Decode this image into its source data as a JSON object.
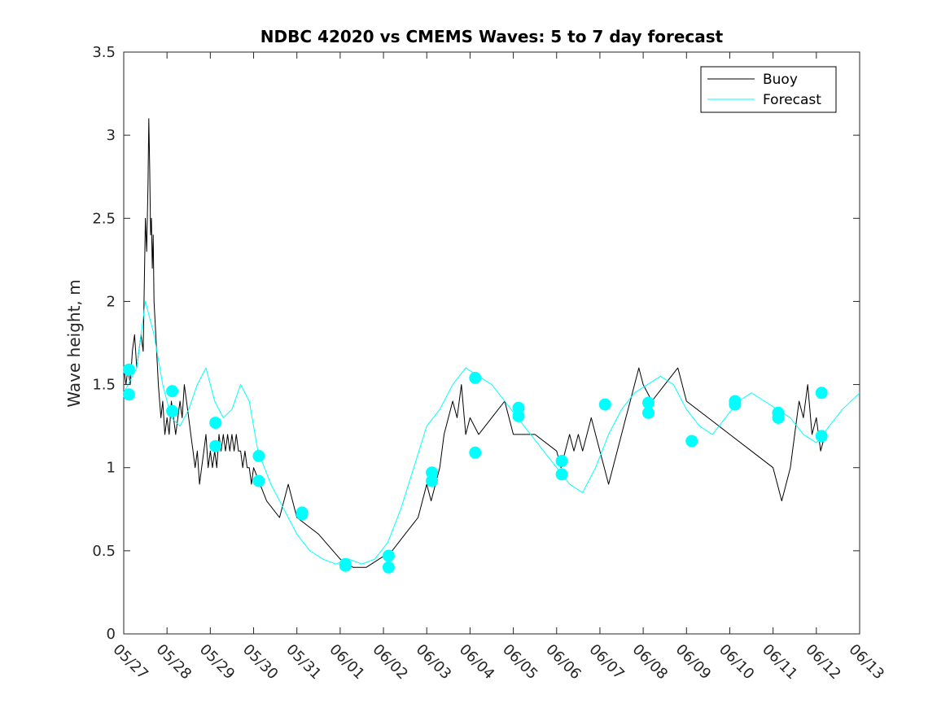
{
  "chart_data": {
    "type": "line",
    "title": "NDBC 42020 vs CMEMS Waves: 5 to 7 day forecast",
    "xlabel": "",
    "ylabel": "Wave height, m",
    "xlim": [
      0,
      17
    ],
    "ylim": [
      0,
      3.5
    ],
    "x_ticks": [
      "05/27",
      "05/28",
      "05/29",
      "05/30",
      "05/31",
      "06/01",
      "06/02",
      "06/03",
      "06/04",
      "06/05",
      "06/06",
      "06/07",
      "06/08",
      "06/09",
      "06/10",
      "06/11",
      "06/12",
      "06/13"
    ],
    "y_ticks": [
      0,
      0.5,
      1,
      1.5,
      2,
      2.5,
      3,
      3.5
    ],
    "y_tick_labels": [
      "0",
      "0.5",
      "1",
      "1.5",
      "2",
      "2.5",
      "3",
      "3.5"
    ],
    "grid": false,
    "legend_position": "top-right",
    "colors": {
      "buoy": "#000000",
      "forecast": "#00ffff",
      "marker": "#00ffff",
      "axis": "#262626"
    },
    "series": [
      {
        "name": "Buoy",
        "color": "#000000",
        "x": [
          0,
          0.05,
          0.1,
          0.15,
          0.2,
          0.25,
          0.3,
          0.35,
          0.4,
          0.45,
          0.5,
          0.53,
          0.56,
          0.58,
          0.6,
          0.62,
          0.64,
          0.66,
          0.68,
          0.7,
          0.72,
          0.74,
          0.76,
          0.78,
          0.8,
          0.83,
          0.86,
          0.9,
          0.95,
          1.0,
          1.05,
          1.1,
          1.15,
          1.2,
          1.25,
          1.3,
          1.35,
          1.4,
          1.45,
          1.5,
          1.55,
          1.6,
          1.65,
          1.7,
          1.75,
          1.8,
          1.85,
          1.9,
          1.95,
          2.0,
          2.05,
          2.1,
          2.15,
          2.2,
          2.25,
          2.3,
          2.35,
          2.4,
          2.45,
          2.5,
          2.55,
          2.6,
          2.65,
          2.7,
          2.75,
          2.8,
          2.85,
          2.9,
          2.95,
          3.0,
          3.3,
          3.6,
          3.7,
          3.8,
          3.9,
          4.0,
          4.5,
          5.0,
          5.3,
          5.6,
          5.9,
          6.2,
          6.5,
          6.8,
          6.9,
          7.0,
          7.1,
          7.2,
          7.3,
          7.4,
          7.5,
          7.6,
          7.7,
          7.8,
          7.9,
          8.0,
          8.2,
          8.5,
          8.8,
          9.0,
          9.5,
          10.0,
          10.1,
          10.2,
          10.3,
          10.4,
          10.5,
          10.6,
          10.7,
          10.8,
          10.9,
          11.0,
          11.1,
          11.2,
          11.3,
          11.4,
          11.5,
          11.6,
          11.7,
          11.8,
          11.9,
          12.0,
          12.2,
          12.5,
          12.8,
          13.0,
          13.5,
          14.0,
          14.5,
          15.0,
          15.1,
          15.2,
          15.3,
          15.4,
          15.5,
          15.6,
          15.7,
          15.8,
          15.9,
          16.0,
          16.1,
          16.2
        ],
        "values": [
          1.6,
          1.5,
          1.6,
          1.5,
          1.7,
          1.8,
          1.6,
          1.7,
          1.8,
          1.7,
          2.5,
          2.3,
          2.7,
          3.1,
          2.8,
          2.4,
          2.5,
          2.2,
          2.4,
          2.0,
          1.9,
          1.8,
          1.7,
          1.6,
          1.5,
          1.4,
          1.3,
          1.4,
          1.2,
          1.3,
          1.2,
          1.4,
          1.3,
          1.2,
          1.3,
          1.4,
          1.3,
          1.5,
          1.4,
          1.3,
          1.2,
          1.1,
          1.0,
          1.1,
          0.9,
          1.0,
          1.1,
          1.2,
          1.0,
          1.1,
          1.0,
          1.1,
          1.0,
          1.2,
          1.1,
          1.2,
          1.1,
          1.2,
          1.1,
          1.2,
          1.1,
          1.2,
          1.1,
          1.1,
          1.0,
          1.1,
          1.0,
          1.0,
          0.9,
          1.0,
          0.8,
          0.7,
          0.8,
          0.9,
          0.8,
          0.7,
          0.6,
          0.45,
          0.4,
          0.4,
          0.45,
          0.5,
          0.6,
          0.7,
          0.8,
          0.9,
          0.8,
          0.9,
          1.0,
          1.2,
          1.3,
          1.4,
          1.3,
          1.5,
          1.2,
          1.3,
          1.2,
          1.3,
          1.4,
          1.2,
          1.2,
          1.1,
          1.0,
          1.1,
          1.2,
          1.1,
          1.2,
          1.1,
          1.2,
          1.3,
          1.2,
          1.1,
          1.0,
          0.9,
          1.0,
          1.1,
          1.2,
          1.3,
          1.4,
          1.5,
          1.6,
          1.5,
          1.4,
          1.5,
          1.6,
          1.4,
          1.3,
          1.2,
          1.1,
          1.0,
          0.9,
          0.8,
          0.9,
          1.0,
          1.2,
          1.4,
          1.3,
          1.5,
          1.2,
          1.3,
          1.1,
          1.2
        ]
      },
      {
        "name": "Forecast",
        "color": "#00ffff",
        "x": [
          0,
          0.3,
          0.5,
          0.7,
          0.9,
          1.1,
          1.3,
          1.5,
          1.7,
          1.9,
          2.1,
          2.3,
          2.5,
          2.7,
          2.9,
          3.1,
          3.4,
          3.7,
          4.0,
          4.3,
          4.6,
          4.9,
          5.2,
          5.5,
          5.8,
          6.1,
          6.4,
          6.7,
          7.0,
          7.3,
          7.6,
          7.9,
          8.2,
          8.5,
          8.8,
          9.1,
          9.4,
          9.7,
          10.0,
          10.3,
          10.6,
          10.9,
          11.2,
          11.5,
          11.8,
          12.1,
          12.4,
          12.7,
          13.0,
          13.3,
          13.6,
          13.9,
          14.2,
          14.5,
          14.8,
          15.1,
          15.4,
          15.7,
          16.0,
          16.3,
          16.6,
          17.0
        ],
        "values": [
          1.45,
          1.6,
          2.0,
          1.8,
          1.5,
          1.3,
          1.25,
          1.35,
          1.5,
          1.6,
          1.4,
          1.3,
          1.35,
          1.5,
          1.4,
          1.1,
          0.9,
          0.75,
          0.6,
          0.5,
          0.45,
          0.42,
          0.45,
          0.42,
          0.45,
          0.55,
          0.75,
          1.0,
          1.25,
          1.35,
          1.5,
          1.6,
          1.55,
          1.5,
          1.4,
          1.3,
          1.2,
          1.1,
          1.0,
          0.9,
          0.85,
          1.0,
          1.2,
          1.35,
          1.45,
          1.5,
          1.55,
          1.5,
          1.35,
          1.25,
          1.2,
          1.3,
          1.4,
          1.45,
          1.4,
          1.35,
          1.3,
          1.2,
          1.15,
          1.25,
          1.35,
          1.45
        ]
      }
    ],
    "markers": {
      "x": [
        0.12,
        0.12,
        1.12,
        1.12,
        2.12,
        2.12,
        3.12,
        3.12,
        4.12,
        4.12,
        5.12,
        5.12,
        6.12,
        6.12,
        7.12,
        7.12,
        8.12,
        8.12,
        9.12,
        9.12,
        10.12,
        10.12,
        11.12,
        12.12,
        12.12,
        13.12,
        14.12,
        14.12,
        15.12,
        15.12,
        16.12,
        16.12
      ],
      "values": [
        1.59,
        1.44,
        1.46,
        1.34,
        1.27,
        1.13,
        1.07,
        0.92,
        0.73,
        0.72,
        0.42,
        0.41,
        0.47,
        0.4,
        0.97,
        0.92,
        1.54,
        1.09,
        1.36,
        1.31,
        1.04,
        0.96,
        1.38,
        1.39,
        1.33,
        1.16,
        1.4,
        1.38,
        1.33,
        1.3,
        1.45,
        1.19
      ]
    }
  }
}
